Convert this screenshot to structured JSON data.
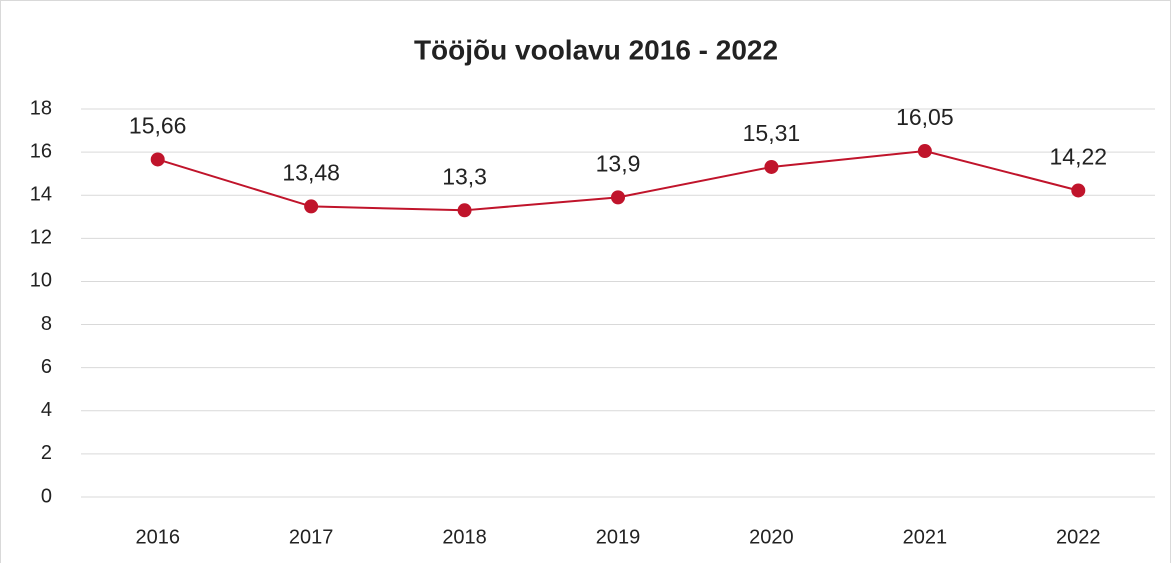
{
  "chart_data": {
    "type": "line",
    "title": "Tööjõu voolavu 2016 - 2022",
    "categories": [
      "2016",
      "2017",
      "2018",
      "2019",
      "2020",
      "2021",
      "2022"
    ],
    "series": [
      {
        "color": "#c0142b",
        "values": [
          15.66,
          13.48,
          13.3,
          13.9,
          15.31,
          16.05,
          14.22
        ],
        "value_labels": [
          "15,66",
          "13,48",
          "13,3",
          "13,9",
          "15,31",
          "16,05",
          "14,22"
        ]
      }
    ],
    "ylim": [
      0,
      18
    ],
    "yticks": [
      0,
      2,
      4,
      6,
      8,
      10,
      12,
      14,
      16,
      18
    ],
    "grid": true
  }
}
